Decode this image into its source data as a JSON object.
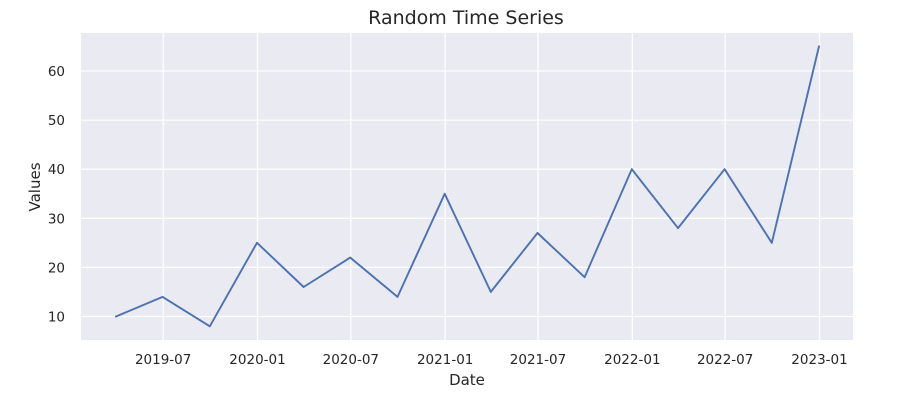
{
  "chart_data": {
    "type": "line",
    "title": "Random Time Series",
    "xlabel": "Date",
    "ylabel": "Values",
    "x_tick_labels": [
      "2019-07",
      "2020-01",
      "2020-07",
      "2021-01",
      "2021-07",
      "2022-01",
      "2022-07",
      "2023-01"
    ],
    "y_ticks": [
      10,
      20,
      30,
      40,
      50,
      60
    ],
    "grid": true,
    "background_color": "#eaeaf2",
    "series_color": "#4c72b0",
    "series": [
      {
        "x": [
          "2019-03-31",
          "2019-06-30",
          "2019-09-30",
          "2019-12-31",
          "2020-03-31",
          "2020-06-30",
          "2020-09-30",
          "2020-12-31",
          "2021-03-31",
          "2021-06-30",
          "2021-09-30",
          "2021-12-31",
          "2022-03-31",
          "2022-06-30",
          "2022-09-30",
          "2022-12-31"
        ],
        "values": [
          10,
          14,
          8,
          25,
          16,
          22,
          14,
          35,
          15,
          27,
          18,
          40,
          28,
          40,
          25,
          65
        ]
      }
    ]
  }
}
